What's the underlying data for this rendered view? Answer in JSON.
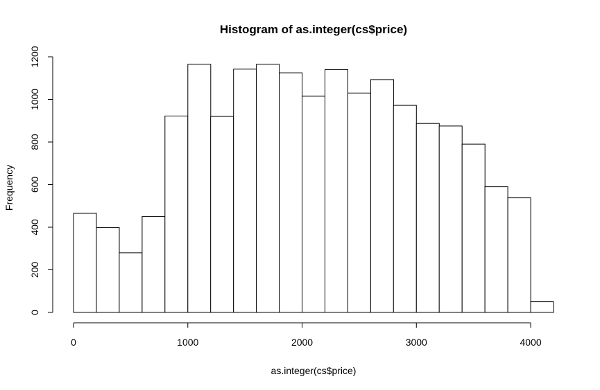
{
  "chart_data": {
    "type": "bar",
    "title": "Histogram of as.integer(cs$price)",
    "xlabel": "as.integer(cs$price)",
    "ylabel": "Frequency",
    "bin_edges": [
      0,
      200,
      400,
      600,
      800,
      1000,
      1200,
      1400,
      1600,
      1800,
      2000,
      2200,
      2400,
      2600,
      2800,
      3000,
      3200,
      3400,
      3600,
      3800,
      4000,
      4200
    ],
    "values": [
      465,
      398,
      280,
      450,
      922,
      1165,
      920,
      1142,
      1165,
      1125,
      1015,
      1140,
      1030,
      1093,
      972,
      887,
      875,
      790,
      590,
      538,
      50
    ],
    "xlim": [
      0,
      4200
    ],
    "ylim": [
      0,
      1200
    ],
    "x_ticks": [
      0,
      1000,
      2000,
      3000,
      4000
    ],
    "y_ticks": [
      0,
      200,
      400,
      600,
      800,
      1000,
      1200
    ],
    "grid": false,
    "bar_fill": "#ffffff",
    "bar_stroke": "#000000"
  }
}
